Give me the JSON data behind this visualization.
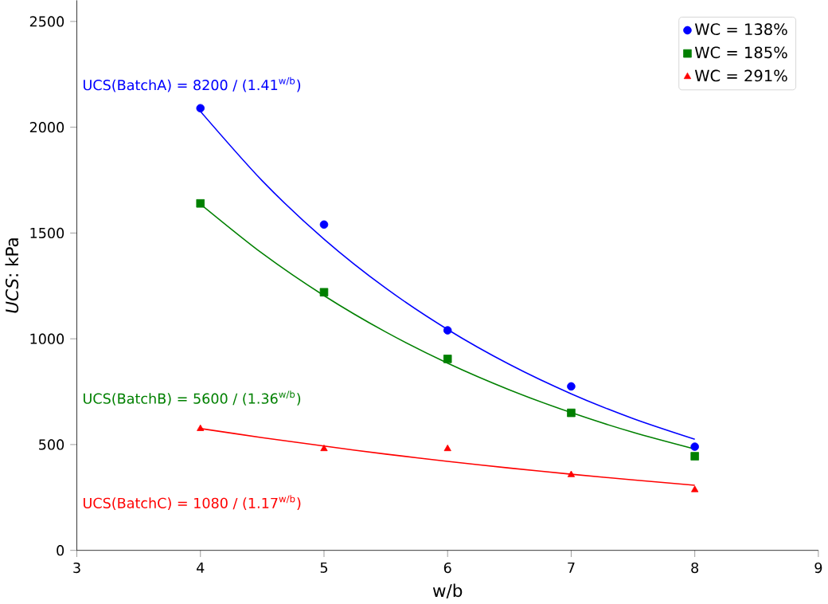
{
  "chart_data": {
    "type": "scatter",
    "xlabel": "w/b",
    "ylabel": "*UCS*: kPa",
    "xlim": [
      3,
      9
    ],
    "xticks": [
      3,
      4,
      5,
      6,
      7,
      8,
      9
    ],
    "ylim": [
      0,
      2600
    ],
    "yticks": [
      0,
      500,
      1000,
      1500,
      2000,
      2500
    ],
    "x": [
      4,
      5,
      6,
      7,
      8
    ],
    "legend": "top right",
    "annotations": [
      "UCS(BatchA) = 8200 / (1.41$^{w/b}$)",
      "UCS(BatchB) = 5600 / (1.36$^{w/b}$)",
      "UCS(BatchC) = 1080 / (1.17$^{w/b}$)"
    ],
    "series": [
      {
        "name": "WC = 138%",
        "color": "#0000ff",
        "marker": "circle",
        "values": [
          2090,
          1540,
          1040,
          775,
          490
        ]
      },
      {
        "name": "WC = 185%",
        "color": "#008000",
        "marker": "square",
        "values": [
          1640,
          1220,
          905,
          650,
          445
        ]
      },
      {
        "name": "WC = 291%",
        "color": "#ff0000",
        "marker": "triangle",
        "values": [
          575,
          480,
          480,
          357,
          286
        ]
      },
      {
        "type": "line",
        "color": "#0000ff",
        "x": [
          4,
          4.5,
          5,
          5.5,
          6,
          6.5,
          7,
          7.5,
          8
        ],
        "values": [
          2075,
          1747,
          1471,
          1239,
          1044,
          879,
          740,
          623,
          525
        ]
      },
      {
        "type": "line",
        "color": "#008000",
        "x": [
          4,
          4.5,
          5,
          5.5,
          6,
          6.5,
          7,
          7.5,
          8
        ],
        "values": [
          1637,
          1404,
          1204,
          1032,
          885,
          759,
          651,
          558,
          479
        ]
      },
      {
        "type": "line",
        "color": "#ff0000",
        "x": [
          4,
          4.5,
          5,
          5.5,
          6,
          6.5,
          7,
          7.5,
          8
        ],
        "values": [
          576,
          533,
          493,
          455,
          421,
          389,
          360,
          333,
          308
        ]
      }
    ]
  }
}
